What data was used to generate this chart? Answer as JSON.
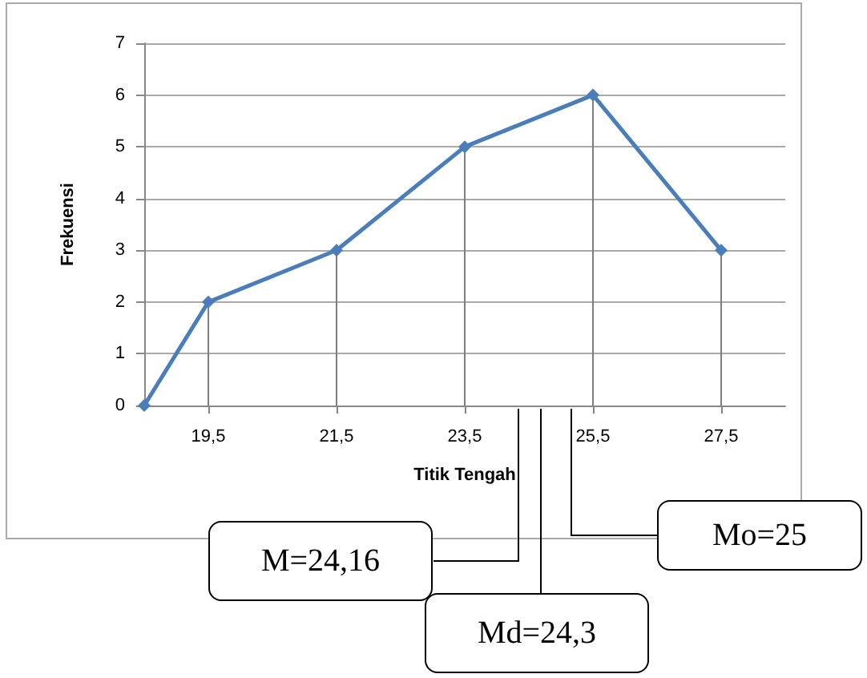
{
  "chart_data": {
    "type": "line",
    "xlabel": "Titik Tengah",
    "ylabel": "Frekuensi",
    "x": [
      18.5,
      19.5,
      21.5,
      23.5,
      25.5,
      27.5
    ],
    "series": [
      {
        "type": "bar",
        "color": "#7f7f7f",
        "x": [
          19.5,
          21.5,
          23.5,
          25.5,
          27.5
        ],
        "values": [
          2,
          3,
          5,
          6,
          3
        ]
      },
      {
        "color": "#4a7ebb",
        "values": [
          0,
          2,
          3,
          5,
          6,
          3
        ]
      }
    ],
    "xlim": [
      18.5,
      28.5
    ],
    "xticks": [
      {
        "value": 19.5,
        "label": "19,5"
      },
      {
        "value": 21.5,
        "label": "21,5"
      },
      {
        "value": 23.5,
        "label": "23,5"
      },
      {
        "value": 25.5,
        "label": "25,5"
      },
      {
        "value": 27.5,
        "label": "27,5"
      }
    ],
    "ylim": [
      0,
      7
    ],
    "yticks": [
      0,
      1,
      2,
      3,
      4,
      5,
      6,
      7
    ],
    "grid": "y",
    "marker": "diamond",
    "line_style": "solid",
    "annotations": [
      "M=24,16",
      "Md=24,3",
      "Mo=25"
    ]
  }
}
